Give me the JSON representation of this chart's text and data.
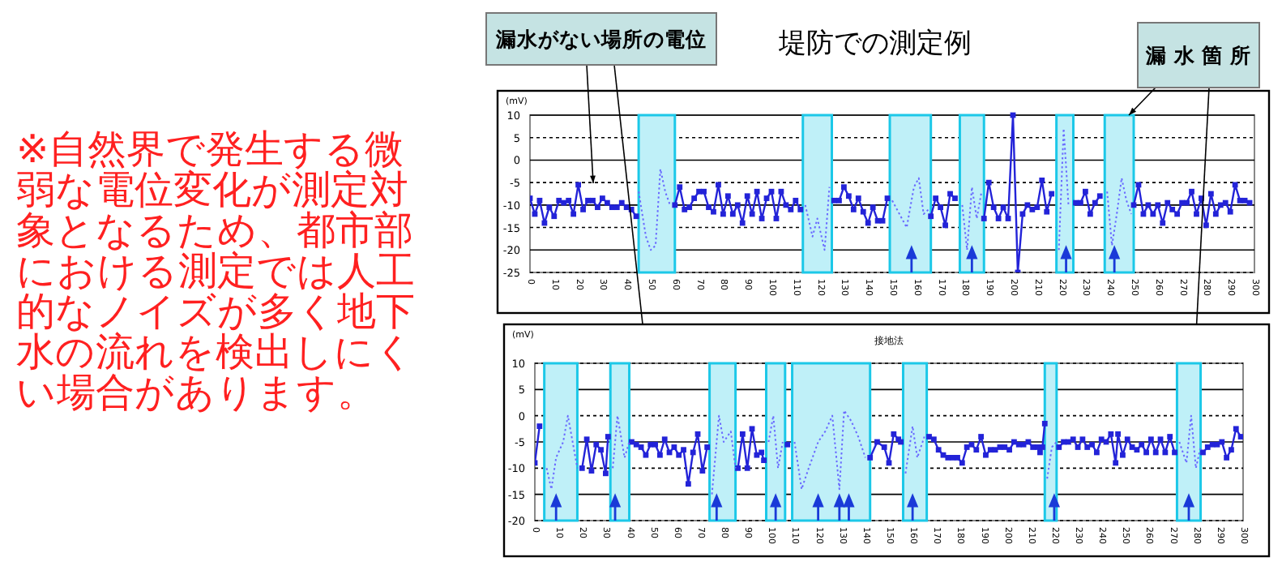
{
  "chart_data": [
    {
      "type": "line",
      "title": "堤防での測定例",
      "ylabel": "(mV)",
      "annotations": [
        "※自然界で発生する微弱な電位変化が測定対象となるため、都市部における測定では人工的なノイズが多く地下水の流れを検出しにくい場合があります。",
        "漏水がない場所の電位",
        {
          "text": "漏 水 箇 所",
          "x": 248,
          "y": 10
        }
      ],
      "xlim": [
        0,
        300
      ],
      "xticks": [
        0,
        10,
        20,
        30,
        40,
        50,
        60,
        70,
        80,
        90,
        100,
        110,
        120,
        130,
        140,
        150,
        160,
        170,
        180,
        190,
        200,
        210,
        220,
        230,
        240,
        250,
        260,
        270,
        280,
        290,
        300
      ],
      "ylim": [
        -25,
        10
      ],
      "yticks": [
        -25,
        -20,
        -15,
        -10,
        -5,
        0,
        5,
        10
      ],
      "grid": "y",
      "bands": [
        {
          "axis": "x",
          "from": 45,
          "to": 60,
          "color": "#bff0f8"
        },
        {
          "axis": "x",
          "from": 113,
          "to": 125,
          "color": "#bff0f8"
        },
        {
          "axis": "x",
          "from": 149,
          "to": 166,
          "color": "#bff0f8"
        },
        {
          "axis": "x",
          "from": 178,
          "to": 188,
          "color": "#bff0f8"
        },
        {
          "axis": "x",
          "from": 218,
          "to": 225,
          "color": "#bff0f8"
        },
        {
          "axis": "x",
          "from": 238,
          "to": 250,
          "color": "#bff0f8"
        }
      ],
      "series": [
        {
          "color": "#2323d8",
          "marker": "square",
          "line_style": "solid",
          "x": [
            0,
            2,
            4,
            6,
            8,
            10,
            12,
            14,
            16,
            18,
            20,
            22,
            24,
            26,
            28,
            30,
            32,
            34,
            36,
            38,
            40,
            42,
            44,
            45,
            60,
            62,
            64,
            66,
            68,
            70,
            72,
            74,
            76,
            78,
            80,
            82,
            84,
            86,
            88,
            90,
            92,
            94,
            96,
            98,
            100,
            102,
            104,
            106,
            108,
            110,
            112,
            113,
            126,
            128,
            130,
            132,
            134,
            136,
            138,
            140,
            142,
            144,
            146,
            148,
            149,
            188,
            190,
            192,
            194,
            196,
            198,
            200,
            202,
            204,
            206,
            208,
            210,
            212,
            214,
            216,
            217,
            226,
            228,
            230,
            232,
            234,
            236,
            237,
            250,
            252,
            254,
            256,
            258,
            260,
            262,
            264,
            266,
            268,
            270,
            272,
            274,
            276,
            278,
            280,
            282,
            284,
            286,
            288,
            290,
            292,
            294,
            296,
            298
          ],
          "values": [
            -8.5,
            -12,
            -9,
            -14,
            -10.5,
            -12.5,
            -9,
            -9.5,
            -9,
            -12,
            -5.5,
            -11,
            -9,
            -9,
            -10.5,
            -8.5,
            -9.5,
            -10.5,
            -10.5,
            -9.5,
            -10.5,
            -11,
            -12.5,
            null,
            -10,
            -6,
            -11,
            -10.5,
            -8.5,
            -7,
            -7,
            -10.5,
            -11.5,
            -5.5,
            -12,
            -8,
            -12,
            -10,
            -14,
            -8,
            -12,
            -7,
            -13,
            -8.5,
            -7,
            -13,
            -7,
            -10,
            -11,
            -9,
            -11,
            null,
            -9,
            -9,
            -6,
            -8,
            -11,
            -8.5,
            -11.5,
            -14,
            -10.5,
            -13.5,
            -13.5,
            -8.5,
            null,
            -13,
            -5,
            -10.5,
            -13,
            -10.5,
            -13,
            10,
            -25,
            -12,
            -10,
            -11,
            -10.5,
            -4.5,
            -11.5,
            -7.5,
            null,
            -9.5,
            -9.5,
            -7,
            -12,
            -9.5,
            -8,
            null,
            -10,
            -5.5,
            -12,
            -10,
            -12,
            -10,
            -14,
            -9.5,
            -11,
            -12,
            -9.5,
            -9.5,
            -7,
            -12,
            -8.5,
            -14.5,
            -7.5,
            -12,
            -10,
            -9.5,
            -11.5,
            -5.5,
            -9,
            -9,
            -9.5
          ]
        },
        {
          "color": "#6a6aff",
          "marker": "none",
          "line_style": "dotted",
          "x": [
            45,
            48,
            50,
            52,
            54,
            56,
            58,
            59,
            114,
            117,
            119,
            122,
            124,
            125,
            150,
            154,
            156,
            159,
            161,
            163,
            165,
            166,
            179,
            181,
            183,
            185,
            187,
            188,
            219,
            221,
            223,
            224,
            239,
            241,
            243,
            245,
            247,
            249
          ],
          "values": [
            -7,
            -17,
            -20,
            -19,
            -2,
            -7,
            -10,
            null,
            -10,
            -17,
            -13,
            -20,
            -6,
            null,
            -9,
            -13,
            -15,
            -6,
            -4,
            -12,
            -11,
            null,
            -10,
            -20,
            -6,
            -13,
            -7,
            null,
            -20,
            7,
            -10,
            null,
            -7,
            -19,
            -12,
            -4,
            -9,
            -12
          ]
        },
        {
          "color": "#2323d8",
          "marker": "square",
          "line_style": "solid",
          "x": [
            166,
            168,
            170,
            172,
            174,
            176
          ],
          "values": [
            -12.5,
            -8.5,
            -10.5,
            -14.5,
            -7.5,
            -8.5
          ]
        }
      ]
    },
    {
      "type": "line",
      "title": "接地法",
      "ylabel": "(mV)",
      "xlim": [
        0,
        300
      ],
      "xticks": [
        0,
        10,
        20,
        30,
        40,
        50,
        60,
        70,
        80,
        90,
        100,
        110,
        120,
        130,
        140,
        150,
        160,
        170,
        180,
        190,
        200,
        210,
        220,
        230,
        240,
        250,
        260,
        270,
        280,
        290,
        300
      ],
      "ylim": [
        -20,
        10
      ],
      "yticks": [
        -20,
        -15,
        -10,
        -5,
        0,
        5,
        10
      ],
      "grid": "y",
      "bands": [
        {
          "axis": "x",
          "from": 4,
          "to": 18,
          "color": "#bff0f8"
        },
        {
          "axis": "x",
          "from": 32,
          "to": 40,
          "color": "#bff0f8"
        },
        {
          "axis": "x",
          "from": 74,
          "to": 85,
          "color": "#bff0f8"
        },
        {
          "axis": "x",
          "from": 98,
          "to": 106,
          "color": "#bff0f8"
        },
        {
          "axis": "x",
          "from": 109,
          "to": 142,
          "color": "#bff0f8"
        },
        {
          "axis": "x",
          "from": 156,
          "to": 166,
          "color": "#bff0f8"
        },
        {
          "axis": "x",
          "from": 216,
          "to": 221,
          "color": "#bff0f8"
        },
        {
          "axis": "x",
          "from": 272,
          "to": 282,
          "color": "#bff0f8"
        }
      ],
      "series": [
        {
          "color": "#2323d8",
          "marker": "square",
          "line_style": "solid",
          "x": [
            0,
            2,
            3,
            20,
            22,
            24,
            26,
            28,
            30,
            31,
            32,
            41,
            43,
            45,
            47,
            49,
            51,
            53,
            55,
            57,
            59,
            61,
            63,
            65,
            67,
            69,
            71,
            73,
            74,
            86,
            88,
            90,
            92,
            94,
            96,
            97,
            98,
            107,
            108,
            142,
            145,
            148,
            150,
            152,
            154,
            155,
            156,
            167,
            169,
            171,
            173,
            175,
            177,
            179,
            181,
            183,
            185,
            187,
            189,
            191,
            193,
            195,
            197,
            199,
            201,
            203,
            205,
            207,
            209,
            211,
            213,
            214,
            215,
            216,
            217,
            222,
            224,
            226,
            228,
            230,
            232,
            234,
            236,
            238,
            240,
            242,
            244,
            246,
            247,
            249,
            251,
            253,
            255,
            257,
            259,
            261,
            263,
            265,
            267,
            269,
            271,
            272,
            283,
            285,
            287,
            289,
            291,
            293,
            295,
            297,
            299
          ],
          "values": [
            -9,
            -2,
            null,
            -10,
            -4.5,
            -10.5,
            -5.5,
            -6.5,
            -11,
            -4,
            null,
            -5,
            -5.5,
            -6,
            -7.5,
            -5.5,
            -5.5,
            -7.5,
            -4.5,
            -7,
            -6,
            -7.5,
            -6.5,
            -13,
            -7,
            -3.5,
            -10.5,
            -6,
            null,
            -10,
            -3.5,
            -10,
            -2.5,
            -7.5,
            -7,
            -8.5,
            null,
            -5.5,
            null,
            -8,
            -5,
            -6,
            -9,
            -3.5,
            -4.5,
            -5,
            null,
            -4,
            -4.5,
            -6.5,
            -7.5,
            -8,
            -8,
            -8,
            -9,
            -6,
            -5.5,
            -6.5,
            -4,
            -7.5,
            -6.5,
            -6.5,
            -6,
            -6,
            -6.5,
            -5,
            -5.5,
            -5.5,
            -5,
            -6,
            -6,
            -7,
            -6,
            -1.5,
            null,
            -6,
            -5,
            -5,
            -4.5,
            -6,
            -4.5,
            -6,
            -5.5,
            -7,
            -4.5,
            -5,
            -3.5,
            -9,
            -3.5,
            -7.5,
            -4.5,
            -6,
            -6.5,
            -5.5,
            -7,
            -4.5,
            -7,
            -4.5,
            -7,
            -4,
            -7,
            null,
            -7,
            -6,
            -5.5,
            -5.5,
            -5,
            -8,
            -6.5,
            -2.5,
            -4
          ]
        },
        {
          "color": "#6a6aff",
          "marker": "none",
          "line_style": "dotted",
          "x": [
            5,
            7,
            9,
            12,
            14,
            16,
            18,
            19,
            33,
            35,
            38,
            40,
            41,
            75,
            78,
            80,
            83,
            85,
            86,
            99,
            101,
            103,
            105,
            106,
            110,
            113,
            116,
            120,
            123,
            126,
            129,
            131,
            134,
            137,
            140,
            141,
            157,
            160,
            162,
            165,
            166,
            217,
            219,
            221,
            222,
            273,
            276,
            278,
            280,
            282
          ],
          "values": [
            -10,
            -14,
            -8,
            -5,
            0,
            -5,
            -10,
            null,
            -10,
            0,
            -8,
            -5,
            null,
            -15,
            0,
            -5,
            -3,
            -10,
            null,
            -5,
            0,
            -10,
            -5,
            null,
            -5,
            -14,
            -10,
            -5,
            -3,
            0,
            -14,
            1,
            -1,
            -4,
            -8,
            null,
            -11,
            -2,
            -8,
            -4,
            null,
            -12,
            -6,
            -5,
            null,
            -5,
            -9,
            0,
            -10,
            -6
          ]
        }
      ]
    }
  ]
}
